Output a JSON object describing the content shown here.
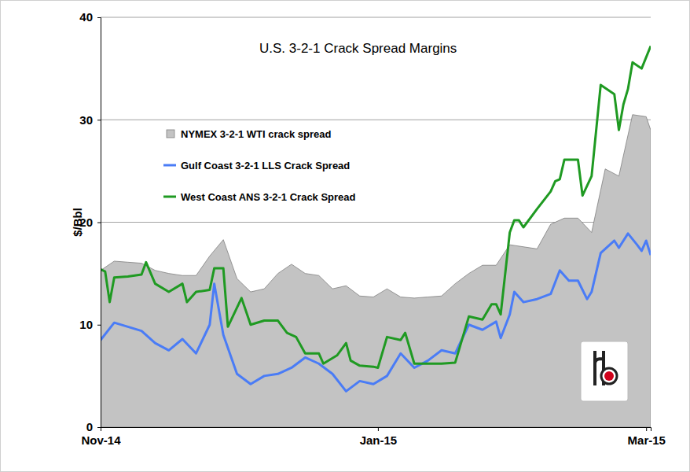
{
  "chart_data": {
    "type": "line",
    "title": "U.S. 3-2-1 Crack Spread Margins",
    "y_label": "$/Bbl",
    "xlim": [
      0,
      121
    ],
    "xticks": [
      {
        "value": 0,
        "label": "Nov-14"
      },
      {
        "value": 61,
        "label": "Jan-15"
      },
      {
        "value": 120,
        "label": "Mar-15"
      }
    ],
    "ylim": [
      0,
      40
    ],
    "yticks": [
      0,
      10,
      20,
      30,
      40
    ],
    "grid": true,
    "legend": "upper left",
    "series": [
      {
        "name": "NYMEX 3-2-1 WTI crack spread",
        "type": "area",
        "color": "#c3c3c3",
        "x": [
          0,
          3,
          6,
          9,
          12,
          15,
          18,
          21,
          24,
          27,
          30,
          33,
          36,
          39,
          42,
          45,
          48,
          51,
          54,
          57,
          60,
          63,
          66,
          69,
          72,
          75,
          78,
          81,
          84,
          87,
          90,
          93,
          96,
          99,
          102,
          105,
          108,
          111,
          114,
          117,
          120,
          121
        ],
        "values": [
          15.3,
          16.2,
          16.1,
          16.0,
          15.3,
          15.0,
          14.8,
          14.8,
          16.7,
          18.3,
          14.5,
          13.2,
          13.5,
          15.0,
          15.9,
          15.0,
          14.8,
          13.5,
          13.8,
          12.8,
          12.7,
          13.5,
          12.7,
          12.6,
          12.7,
          12.8,
          14.0,
          15.0,
          15.8,
          15.8,
          17.8,
          17.6,
          17.4,
          19.8,
          20.4,
          20.4,
          19.0,
          25.2,
          24.5,
          30.5,
          30.3,
          29.0
        ]
      },
      {
        "name": "Gulf Coast 3-2-1 LLS Crack Spread",
        "type": "line",
        "color": "#4a7cf6",
        "x": [
          0,
          3,
          6,
          9,
          12,
          15,
          18,
          21,
          24,
          25,
          27,
          30,
          33,
          36,
          39,
          42,
          45,
          48,
          51,
          54,
          57,
          60,
          63,
          66,
          69,
          72,
          75,
          78,
          81,
          84,
          87,
          88,
          90,
          91,
          93,
          96,
          99,
          101,
          103,
          105,
          107,
          108,
          110,
          113,
          114,
          116,
          118,
          119,
          120,
          121
        ],
        "values": [
          8.5,
          10.2,
          9.8,
          9.4,
          8.2,
          7.5,
          8.6,
          7.2,
          10.0,
          14.0,
          9.0,
          5.2,
          4.2,
          5.0,
          5.2,
          5.8,
          6.8,
          6.2,
          5.2,
          3.5,
          4.5,
          4.2,
          5.0,
          7.2,
          5.8,
          6.5,
          7.5,
          7.2,
          10.0,
          9.5,
          10.3,
          8.7,
          11.0,
          13.2,
          12.2,
          12.5,
          13.0,
          15.3,
          14.3,
          14.3,
          12.5,
          13.2,
          17.0,
          18.2,
          17.5,
          18.9,
          17.8,
          17.2,
          18.2,
          16.8
        ]
      },
      {
        "name": "West Coast ANS 3-2-1 Crack Spread",
        "type": "line",
        "color": "#1f9a22",
        "x": [
          0,
          1,
          2,
          3,
          6,
          9,
          10,
          12,
          15,
          18,
          19,
          21,
          24,
          25,
          27,
          28,
          31,
          33,
          36,
          39,
          41,
          43,
          45,
          48,
          49,
          52,
          54,
          55,
          57,
          60,
          61,
          63,
          66,
          67,
          69,
          72,
          75,
          78,
          81,
          84,
          86,
          87,
          88,
          90,
          91,
          92,
          93,
          96,
          99,
          100,
          101,
          102,
          105,
          106,
          108,
          110,
          113,
          114,
          115,
          116,
          117,
          119,
          121
        ],
        "values": [
          15.4,
          15.2,
          12.2,
          14.6,
          14.7,
          14.9,
          16.1,
          14.0,
          13.2,
          14.0,
          12.2,
          13.2,
          13.4,
          15.5,
          15.5,
          9.8,
          12.6,
          10.0,
          10.4,
          10.4,
          9.2,
          8.8,
          7.2,
          7.2,
          6.2,
          7.0,
          8.2,
          6.5,
          6.0,
          5.9,
          5.8,
          8.8,
          8.5,
          9.2,
          6.2,
          6.2,
          6.2,
          6.3,
          10.8,
          10.5,
          12.0,
          12.0,
          11.0,
          19.0,
          20.2,
          20.2,
          19.5,
          21.3,
          23.0,
          24.0,
          24.2,
          26.1,
          26.1,
          22.6,
          24.5,
          33.4,
          32.5,
          29.0,
          31.5,
          33.0,
          35.6,
          35.0,
          37.2
        ]
      }
    ]
  }
}
